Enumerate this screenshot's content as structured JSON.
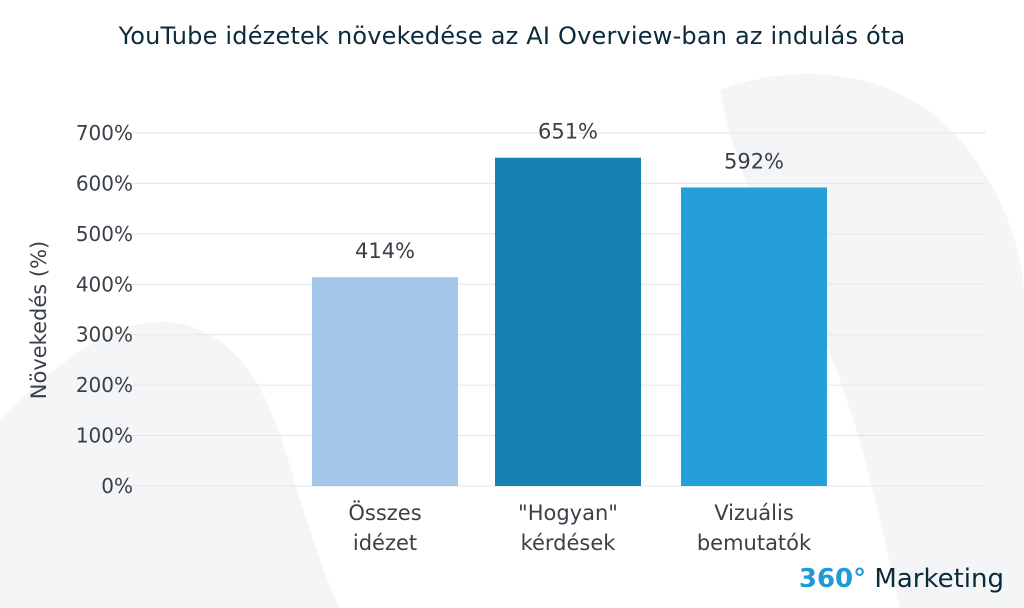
{
  "title": "YouTube idézetek növekedése az AI Overview-ban az indulás óta",
  "brand": {
    "number_part": "360°",
    "word_part": " Marketing"
  },
  "chart_data": {
    "type": "bar",
    "categories": [
      [
        "Összes",
        "idézet"
      ],
      [
        "\"Hogyan\"",
        "kérdések"
      ],
      [
        "Vizuális",
        "bemutatók"
      ]
    ],
    "values": [
      414,
      651,
      592
    ],
    "value_labels": [
      "414%",
      "651%",
      "592%"
    ],
    "ylabel": "Növekedés (%)",
    "ylim": [
      0,
      700
    ],
    "yticks": [
      0,
      100,
      200,
      300,
      400,
      500,
      600,
      700
    ],
    "ytick_labels": [
      "0%",
      "100%",
      "200%",
      "300%",
      "400%",
      "500%",
      "600%",
      "700%"
    ],
    "colors": [
      "#a3c7e8",
      "#1782b2",
      "#249fda"
    ],
    "grid": true
  }
}
